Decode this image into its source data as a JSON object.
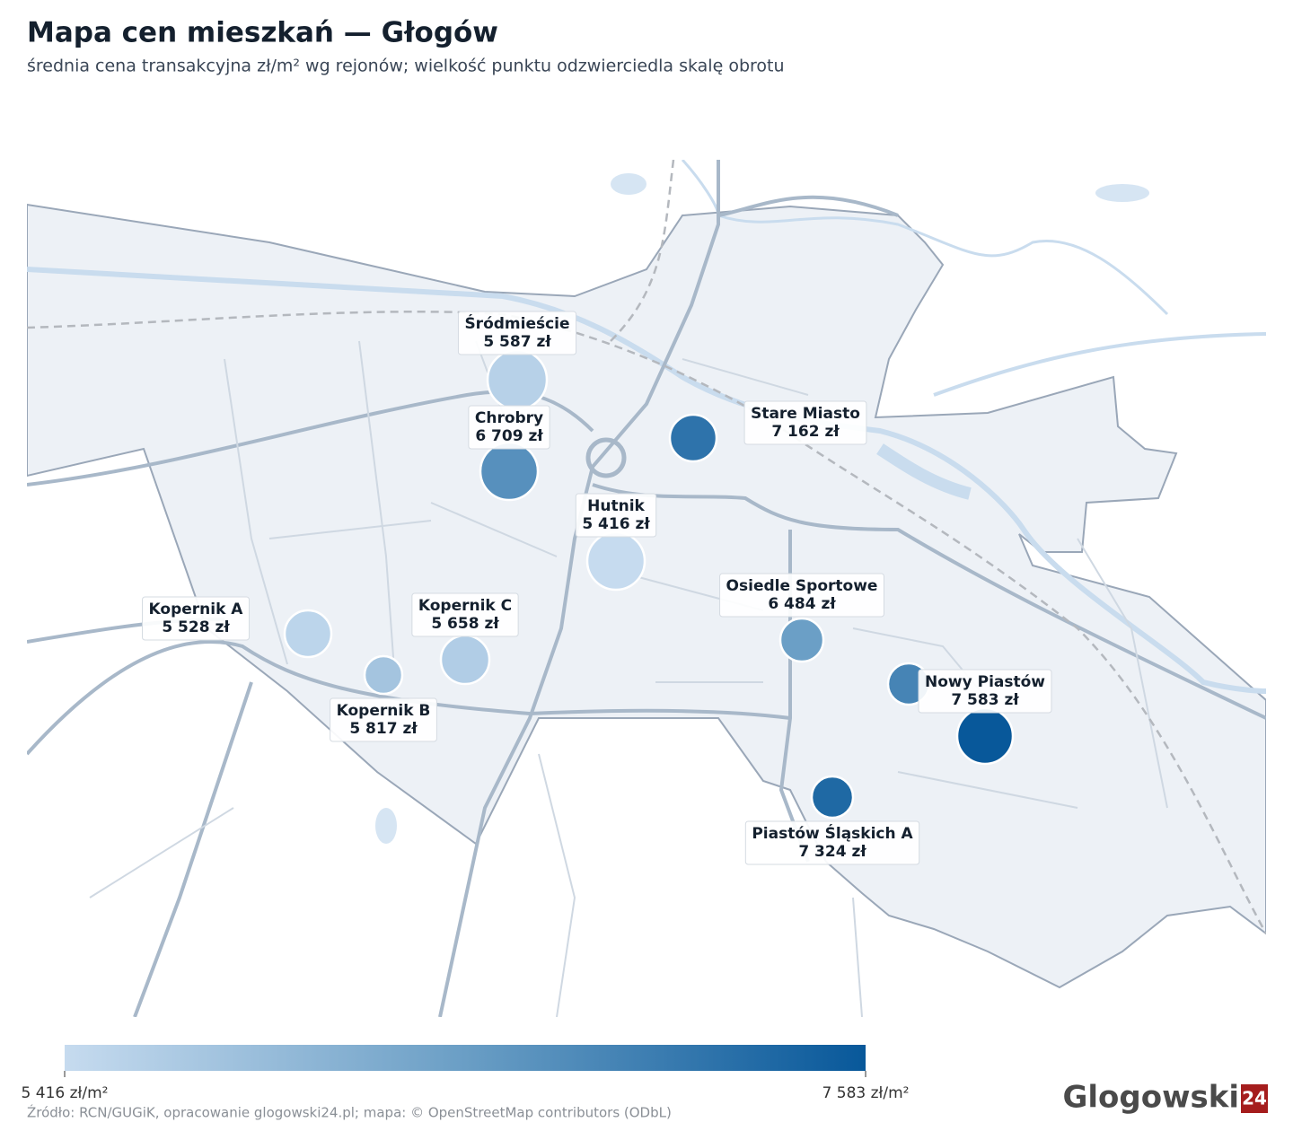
{
  "chart_data": {
    "type": "bubble-map",
    "title": "Mapa cen mieszkań — Głogów",
    "subtitle": "średnia cena transakcyjna zł/m² wg rejonów; wielkość punktu odzwierciedla skalę obrotu",
    "names": [
      "Śródmieście",
      "Chrobry",
      "Stare Miasto",
      "Hutnik",
      "Kopernik A",
      "Kopernik C",
      "Kopernik B",
      "Osiedle Sportowe",
      "Nowy Piastów",
      "Piastów Śląskich A",
      null
    ],
    "values": [
      5587,
      6709,
      7162,
      5416,
      5528,
      5658,
      5817,
      6484,
      7583,
      7324,
      6900
    ],
    "value_labels": [
      "5 587 zł",
      "6 709 zł",
      "7 162 zł",
      "5 416 zł",
      "5 528 zł",
      "5 658 zł",
      "5 817 zł",
      "6 484 zł",
      "7 583 zł",
      "7 324 zł",
      null
    ],
    "colors": [
      "#c6dbef",
      "#6a9ec5",
      "#08589a"
    ],
    "colorbar_range": [
      5416,
      7583
    ],
    "colorbar_ticks": [
      {
        "value": 5416,
        "label": "5 416 zł/m²"
      },
      {
        "value": 7583,
        "label": "7 583 zł/m²"
      }
    ]
  },
  "source": "Źródło: RCN/GUGiK, opracowanie glogowski24.pl; mapa: © OpenStreetMap contributors (ODbL)",
  "branding": {
    "name": "Glogowski",
    "badge": "24"
  }
}
